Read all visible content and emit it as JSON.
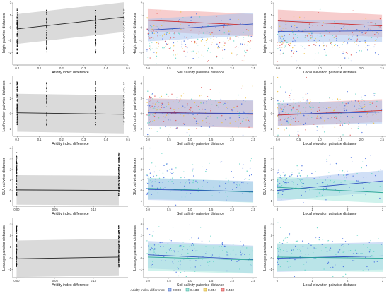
{
  "chart_data": {
    "type": "scatter",
    "rows": [
      {
        "ylabel": "Height pairwise distances",
        "ylim": [
          -3,
          2
        ],
        "yticks": [
          -2,
          -1,
          0,
          1,
          2
        ]
      },
      {
        "ylabel": "Leaf number pairwise distances",
        "ylim": [
          -3,
          5
        ],
        "yticks": [
          -2,
          0,
          2,
          4
        ]
      },
      {
        "ylabel": "SLA pairwise distances",
        "ylim": [
          -1.5,
          4.2
        ],
        "yticks": [
          -1,
          0,
          1,
          2,
          3,
          4
        ]
      },
      {
        "ylabel": "Leakage pairwise distances",
        "ylim": [
          -1.7,
          3.5
        ],
        "yticks": [
          -1,
          0,
          1,
          2,
          3
        ]
      }
    ],
    "columns": [
      {
        "xlabel": "Aridity index difference"
      },
      {
        "xlabel": "Soil salinity pairwise distance"
      },
      {
        "xlabel": "Local elevation pairwise distance"
      }
    ],
    "legend": {
      "title": "Aridity index difference",
      "position": "bottom",
      "levels": [
        "0.000",
        "0.133",
        "0.354",
        "0.482"
      ],
      "colors": [
        "#4169e1",
        "#5fd4c4",
        "#f0c040",
        "#e05050"
      ]
    },
    "panels": [
      {
        "id": "row1-col1",
        "xlim": [
          -0.02,
          0.5
        ],
        "xticks": [
          "0.0",
          "0.1",
          "0.2",
          "0.3",
          "0.4",
          "0.5"
        ],
        "fit": [
          {
            "x": [
              0.0,
              0.482
            ],
            "y": [
              -0.1,
              0.85
            ]
          }
        ],
        "band": 1.2
      },
      {
        "id": "row1-col2",
        "xlim": [
          -0.1,
          2.6
        ],
        "xticks": [
          "0.0",
          "0.5",
          "1.0",
          "1.5",
          "2.0",
          "2.5"
        ],
        "fit": [
          {
            "x": [
              0,
              2.5
            ],
            "y": [
              0.6,
              0.2
            ],
            "level": 3
          },
          {
            "x": [
              0,
              2.5
            ],
            "y": [
              -0.2,
              0.3
            ],
            "level": 0
          }
        ],
        "band": 0.9
      },
      {
        "id": "row1-col3",
        "xlim": [
          -0.1,
          2.6
        ],
        "xticks": [
          "0.0",
          "0.5",
          "1.0",
          "1.5",
          "2.0",
          "2.5"
        ],
        "fit": [
          {
            "x": [
              0,
              2.5
            ],
            "y": [
              0.55,
              0.15
            ],
            "level": 3
          },
          {
            "x": [
              0,
              2.5
            ],
            "y": [
              -0.3,
              -0.25
            ],
            "level": 0
          }
        ],
        "band": 0.9
      },
      {
        "id": "row2-col1",
        "xlim": [
          -0.02,
          0.5
        ],
        "xticks": [
          "0.0",
          "0.1",
          "0.2",
          "0.3",
          "0.4",
          "0.5"
        ],
        "fit": [
          {
            "x": [
              0.0,
              0.482
            ],
            "y": [
              0.1,
              -0.1
            ]
          }
        ],
        "band": 2.5
      },
      {
        "id": "row2-col2",
        "xlim": [
          -0.1,
          2.6
        ],
        "xticks": [
          "0.0",
          "0.5",
          "1.0",
          "1.5",
          "2.0",
          "2.5"
        ],
        "fit": [
          {
            "x": [
              0,
              2.5
            ],
            "y": [
              0.2,
              -0.1
            ],
            "level": 3
          },
          {
            "x": [
              0,
              2.5
            ],
            "y": [
              0.1,
              0.0
            ],
            "level": 0
          }
        ],
        "band": 1.8
      },
      {
        "id": "row2-col3",
        "xlim": [
          -0.1,
          2.6
        ],
        "xticks": [
          "0.0",
          "0.5",
          "1.0",
          "1.5",
          "2.0",
          "2.5"
        ],
        "fit": [
          {
            "x": [
              0,
              2.5
            ],
            "y": [
              -0.2,
              0.4
            ],
            "level": 3
          },
          {
            "x": [
              0,
              2.5
            ],
            "y": [
              -0.1,
              0.2
            ],
            "level": 0
          }
        ],
        "band": 1.5
      },
      {
        "id": "row3-col1",
        "xlim": [
          -0.005,
          0.145
        ],
        "xticks": [
          "0.00",
          "0.05",
          "0.10"
        ],
        "fit": [
          {
            "x": [
              0.0,
              0.133
            ],
            "y": [
              0.05,
              0.0
            ]
          }
        ],
        "band": 1.4
      },
      {
        "id": "row3-col2",
        "xlim": [
          -0.1,
          2.6
        ],
        "xticks": [
          "0.0",
          "0.5",
          "1.0",
          "1.5",
          "2.0",
          "2.5"
        ],
        "fit": [
          {
            "x": [
              0,
              2.5
            ],
            "y": [
              0.2,
              -0.15
            ],
            "level": 1
          },
          {
            "x": [
              0,
              2.5
            ],
            "y": [
              0.1,
              -0.1
            ],
            "level": 0
          }
        ],
        "band": 1.0
      },
      {
        "id": "row3-col3",
        "xlim": [
          -0.1,
          3.1
        ],
        "xticks": [
          "0",
          "1",
          "2",
          "3"
        ],
        "fit": [
          {
            "x": [
              0,
              3.0
            ],
            "y": [
              0.0,
              0.9
            ],
            "level": 0
          },
          {
            "x": [
              0,
              3.0
            ],
            "y": [
              0.3,
              -0.2
            ],
            "level": 1
          }
        ],
        "band": 1.0
      },
      {
        "id": "row4-col1",
        "xlim": [
          -0.005,
          0.145
        ],
        "xticks": [
          "0.00",
          "0.05",
          "0.10"
        ],
        "fit": [
          {
            "x": [
              0.0,
              0.133
            ],
            "y": [
              -0.05,
              0.1
            ]
          }
        ],
        "band": 1.6
      },
      {
        "id": "row4-col2",
        "xlim": [
          -0.1,
          2.6
        ],
        "xticks": [
          "0.0",
          "0.5",
          "1.0",
          "1.5",
          "2.0",
          "2.5"
        ],
        "fit": [
          {
            "x": [
              0,
              2.5
            ],
            "y": [
              0.3,
              -0.1
            ],
            "level": 0
          },
          {
            "x": [
              0,
              2.5
            ],
            "y": [
              0.1,
              -0.15
            ],
            "level": 1
          }
        ],
        "band": 1.2
      },
      {
        "id": "row4-col3",
        "xlim": [
          -0.1,
          3.1
        ],
        "xticks": [
          "0",
          "1",
          "2",
          "3"
        ],
        "fit": [
          {
            "x": [
              0,
              3.0
            ],
            "y": [
              0.0,
              0.2
            ],
            "level": 0
          },
          {
            "x": [
              0,
              3.0
            ],
            "y": [
              0.1,
              0.0
            ],
            "level": 1
          }
        ],
        "band": 1.2
      }
    ]
  }
}
